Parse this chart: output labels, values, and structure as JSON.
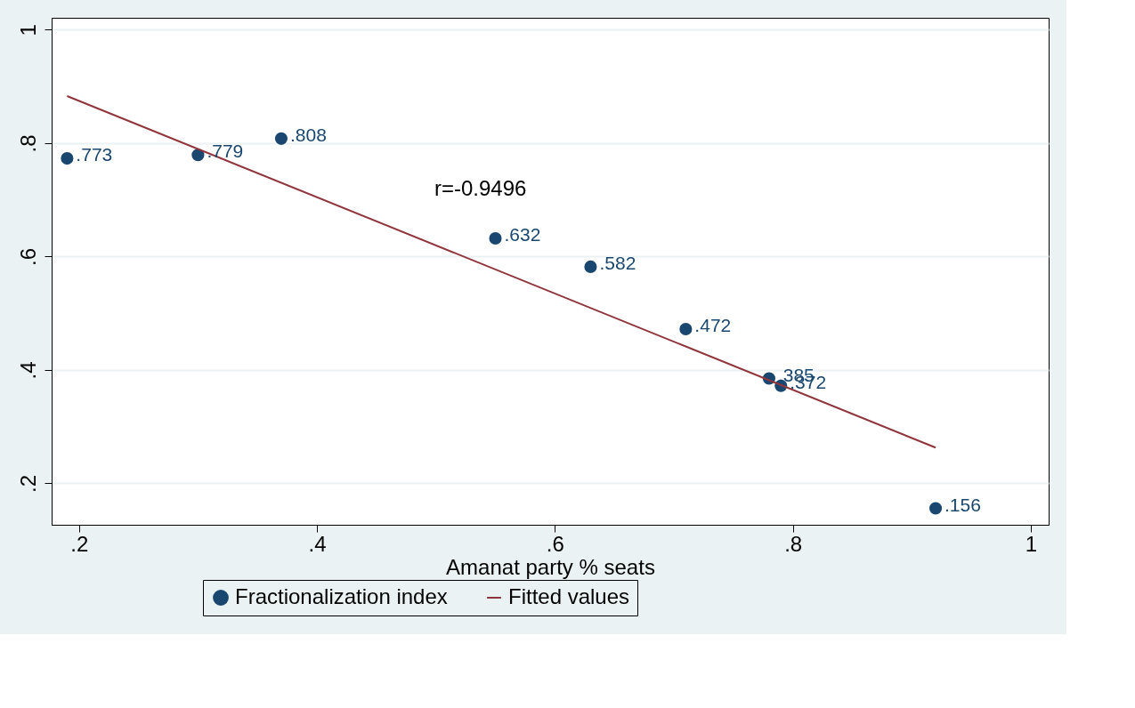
{
  "chart_data": {
    "type": "scatter",
    "xlabel": "Amanat party % seats",
    "series": [
      {
        "name": "Fractionalization index",
        "color": "#1a476f",
        "marker": "circle",
        "x": [
          0.19,
          0.3,
          0.37,
          0.55,
          0.63,
          0.71,
          0.78,
          0.79,
          0.92
        ],
        "values": [
          0.773,
          0.779,
          0.808,
          0.632,
          0.582,
          0.472,
          0.385,
          0.372,
          0.156
        ],
        "value_labels": [
          ".773",
          ".779",
          ".808",
          ".632",
          ".582",
          ".472",
          ".385",
          ".372",
          ".156"
        ]
      },
      {
        "name": "Fitted values",
        "type": "line",
        "color": "#90353b",
        "line_style": "solid",
        "x": [
          0.19,
          0.92
        ],
        "values": [
          0.883,
          0.263
        ]
      }
    ],
    "xlim": [
      0.177,
      1.015
    ],
    "ylim": [
      0.127,
      1.021
    ],
    "xticks": [
      {
        "value": 0.2,
        "label": ".2"
      },
      {
        "value": 0.4,
        "label": ".4"
      },
      {
        "value": 0.6,
        "label": ".6"
      },
      {
        "value": 0.8,
        "label": ".8"
      },
      1
    ],
    "yticks": [
      {
        "value": 0.2,
        "label": ".2"
      },
      {
        "value": 0.4,
        "label": ".4"
      },
      {
        "value": 0.6,
        "label": ".6"
      },
      {
        "value": 0.8,
        "label": ".8"
      },
      1
    ],
    "grid": "y",
    "legend": "bottom",
    "annotations": [
      "r=-0.9496"
    ]
  }
}
